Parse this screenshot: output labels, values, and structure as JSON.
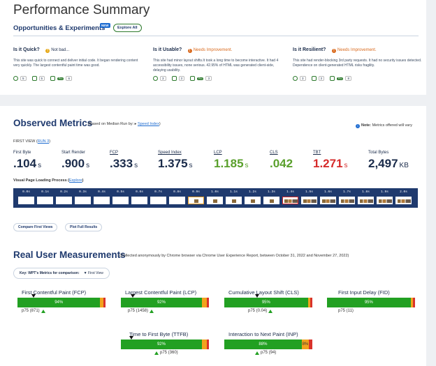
{
  "title": "Performance Summary",
  "opportunities": {
    "heading": "Opportunities & Experiments",
    "badge": "NEW",
    "explore_label": "Explore All",
    "columns": [
      {
        "question": "Is it Quick?",
        "status": "Not bad...",
        "status_color": "#e6a817",
        "description": "This site was quick to connect and deliver initial code. It began rendering content very quickly. The largest contentful paint time was good.",
        "counts": [
          "5",
          "5",
          "6"
        ]
      },
      {
        "question": "Is it Usable?",
        "status": "Needs Improvement.",
        "status_color": "#d9691c",
        "description": "This site had minor layout shifts.It took a long time to become interactive. It had 4 accessibility issues, none serious. 42.95% of HTML was generated client-side, delaying usability.",
        "counts": [
          "3",
          "3",
          "3"
        ]
      },
      {
        "question": "Is it Resilient?",
        "status": "Needs Improvement.",
        "status_color": "#d9691c",
        "description": "This site had render-blocking 3rd party requests. It had no security issues detected. Dependence on client-generated HTML risks fragility.",
        "counts": [
          "3",
          "3",
          "8"
        ]
      }
    ],
    "pro_label": "Pro"
  },
  "observed": {
    "title": "Observed Metrics",
    "subtitle_prefix": "(Based on Median Run by: ▸ ",
    "subtitle_link": "Speed Index",
    "subtitle_suffix": ")",
    "note_bold": "Note:",
    "note_text": " Metrics offered will vary",
    "first_view_prefix": "FIRST VIEW (",
    "first_view_link": "RUN 3",
    "first_view_suffix": ")",
    "metrics": [
      {
        "label": "First Byte",
        "value": ".104",
        "unit": "s",
        "color": "#1a2b4a"
      },
      {
        "label": "Start Render",
        "value": ".900",
        "unit": "s",
        "color": "#1a2b4a"
      },
      {
        "label": "FCP",
        "value": ".333",
        "unit": "s",
        "color": "#1a2b4a"
      },
      {
        "label": "Speed Index",
        "value": "1.375",
        "unit": "s",
        "color": "#1a2b4a"
      },
      {
        "label": "LCP",
        "value": "1.185",
        "unit": "s",
        "color": "#5aa02c"
      },
      {
        "label": "CLS",
        "value": ".042",
        "unit": "",
        "color": "#5aa02c"
      },
      {
        "label": "TBT",
        "value": "1.271",
        "unit": "s",
        "color": "#d62b2b"
      },
      {
        "label": "Total Bytes",
        "value": "2,497",
        "unit": "KB",
        "color": "#1a2b4a"
      }
    ],
    "vplp_label": "Visual Page Loading Process (",
    "vplp_link": "Explore",
    "vplp_suffix": ")",
    "frames": [
      "0.0s",
      "0.1s",
      "0.2s",
      "0.3s",
      "0.4s",
      "0.5s",
      "0.6s",
      "0.7s",
      "0.8s",
      "0.9s",
      "1.0s",
      "1.1s",
      "1.2s",
      "1.3s",
      "1.4s",
      "1.5s",
      "1.6s",
      "1.7s",
      "1.8s",
      "1.9s",
      "2.0s"
    ],
    "compare_label": "Compare First Views",
    "plot_label": "Plot Full Results"
  },
  "rum": {
    "title": "Real User Measurements",
    "subtitle": "(Collected anonymously by Chrome browser via Chrome User Experience Report, between October 31, 2022 and November 27, 2022)",
    "key_label": "Key:  WPT's Metrics for comparison:",
    "key_value": "▼ First View",
    "cards": [
      {
        "name": "First Contentful Paint (FCP)",
        "good_pct": 94,
        "good_label": "94%",
        "mid_pct": 4,
        "mid_label": "",
        "poor_pct": 2,
        "p75": "p75 (871)"
      },
      {
        "name": "Largest Contentful Paint (LCP)",
        "good_pct": 92,
        "good_label": "92%",
        "mid_pct": 6,
        "mid_label": "",
        "poor_pct": 2,
        "p75": "p75 (1458)"
      },
      {
        "name": "Cumulative Layout Shift (CLS)",
        "good_pct": 95,
        "good_label": "95%",
        "mid_pct": 3,
        "mid_label": "",
        "poor_pct": 2,
        "p75": "p75 (0.04)"
      },
      {
        "name": "First Input Delay (FID)",
        "good_pct": 95,
        "good_label": "95%",
        "mid_pct": 3,
        "mid_label": "",
        "poor_pct": 2,
        "p75": "p75 (11)"
      },
      {
        "name": "Time to First Byte (TTFB)",
        "good_pct": 92,
        "good_label": "92%",
        "mid_pct": 6,
        "mid_label": "",
        "poor_pct": 2,
        "p75": "p75 (360)"
      },
      {
        "name": "Interaction to Next Paint (INP)",
        "good_pct": 88,
        "good_label": "88%",
        "mid_pct": 8,
        "mid_label": "8%",
        "poor_pct": 4,
        "p75": "p75 (94)"
      }
    ]
  }
}
